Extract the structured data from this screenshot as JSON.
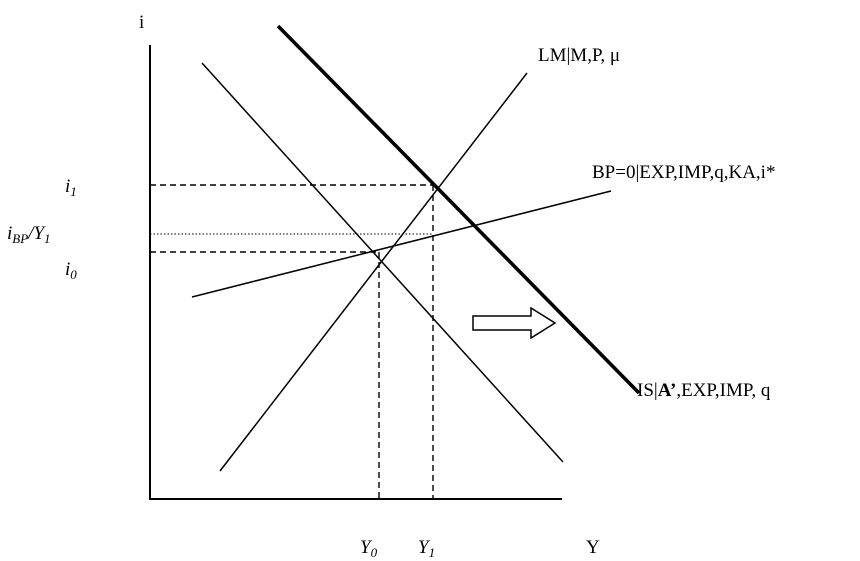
{
  "axes": {
    "y_label": "i",
    "x_label": "Y"
  },
  "curves": {
    "lm": {
      "label": "LM|M,P, μ"
    },
    "bp": {
      "label": "BP=0|EXP,IMP,q,KA,i*"
    },
    "is_new": {
      "label_prefix": "IS|",
      "label_bold": "A’",
      "label_suffix": ",EXP,IMP, q"
    }
  },
  "levels": {
    "i1": {
      "base": "i",
      "sub": "1"
    },
    "i0": {
      "base": "i",
      "sub": "0"
    },
    "ibp": {
      "base": "i",
      "sub": "BP",
      "tail_base": "/Y",
      "tail_sub": "1"
    },
    "y0": {
      "base": "Y",
      "sub": "0"
    },
    "y1": {
      "base": "Y",
      "sub": "1"
    }
  }
}
